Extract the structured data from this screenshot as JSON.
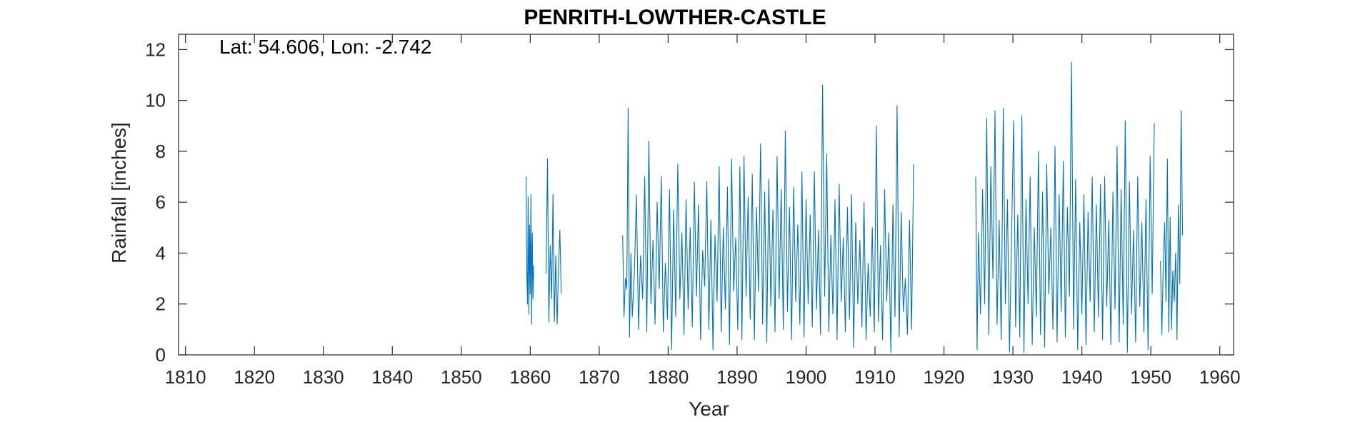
{
  "chart_data": {
    "type": "line",
    "title": "PENRITH-LOWTHER-CASTLE",
    "annotation": "Lat: 54.606, Lon: -2.742",
    "xlabel": "Year",
    "ylabel": "Rainfall [inches]",
    "xlim": [
      1809,
      1962
    ],
    "ylim": [
      0,
      12.6
    ],
    "xticks": [
      1810,
      1820,
      1830,
      1840,
      1850,
      1860,
      1870,
      1880,
      1890,
      1900,
      1910,
      1920,
      1930,
      1940,
      1950,
      1960
    ],
    "yticks": [
      0,
      2,
      4,
      6,
      8,
      10,
      12
    ],
    "grid": false,
    "series_color": "#0072BD",
    "series": [
      {
        "segments": [
          {
            "x": [
              1859.4,
              1859.5,
              1859.6,
              1859.7,
              1859.8,
              1859.9,
              1860.0,
              1860.1,
              1860.2,
              1860.3,
              1860.4,
              1860.5
            ],
            "y": [
              7.0,
              3.2,
              2.0,
              6.2,
              1.6,
              5.1,
              2.4,
              6.3,
              1.2,
              4.8,
              2.2,
              3.5
            ]
          },
          {
            "x": [
              1862.3,
              1862.5,
              1862.7,
              1862.9,
              1863.1,
              1863.3,
              1863.5,
              1863.7,
              1863.9,
              1864.1,
              1864.3,
              1864.5
            ],
            "y": [
              3.2,
              7.7,
              1.3,
              4.3,
              2.2,
              6.3,
              1.3,
              3.9,
              1.2,
              3.4,
              4.9,
              2.4
            ]
          },
          {
            "x": [
              1873.4,
              1873.6,
              1873.8,
              1874.0,
              1874.2,
              1874.4,
              1874.6,
              1874.8,
              1875.1,
              1875.4,
              1875.7,
              1876.0,
              1876.3,
              1876.6,
              1876.9,
              1877.2,
              1877.5,
              1877.8,
              1878.1,
              1878.4,
              1878.7,
              1879.0,
              1879.3,
              1879.6,
              1879.9,
              1880.2,
              1880.5,
              1880.8,
              1881.1,
              1881.4,
              1881.7,
              1882.0,
              1882.3,
              1882.6,
              1882.9,
              1883.2,
              1883.5,
              1883.8,
              1884.1,
              1884.4,
              1884.7,
              1885.0,
              1885.3,
              1885.6,
              1885.9,
              1886.2,
              1886.5,
              1886.8,
              1887.1,
              1887.4,
              1887.7,
              1888.0,
              1888.3,
              1888.6,
              1888.9,
              1889.2,
              1889.5,
              1889.8,
              1890.1,
              1890.4,
              1890.7,
              1891.0,
              1891.3,
              1891.6,
              1891.9,
              1892.2,
              1892.5,
              1892.8,
              1893.1,
              1893.4,
              1893.7,
              1894.0,
              1894.3,
              1894.6,
              1894.9,
              1895.2,
              1895.5,
              1895.8,
              1896.1,
              1896.4,
              1896.7,
              1897.0,
              1897.3,
              1897.6,
              1897.9,
              1898.2,
              1898.5,
              1898.8,
              1899.1,
              1899.4,
              1899.7,
              1900.0,
              1900.3,
              1900.6,
              1900.9,
              1901.2,
              1901.5,
              1901.8,
              1902.1,
              1902.4,
              1902.7,
              1903.0,
              1903.3,
              1903.6,
              1903.9,
              1904.2,
              1904.5,
              1904.8,
              1905.1,
              1905.4,
              1905.7,
              1906.0,
              1906.3,
              1906.6,
              1906.9,
              1907.2,
              1907.5,
              1907.8,
              1908.1,
              1908.4,
              1908.7,
              1909.0,
              1909.3,
              1909.6,
              1909.9,
              1910.2,
              1910.5,
              1910.8,
              1911.1,
              1911.4,
              1911.7,
              1912.0,
              1912.3,
              1912.6,
              1912.9,
              1913.2,
              1913.5,
              1913.8,
              1914.1,
              1914.4,
              1914.7,
              1915.0,
              1915.3,
              1915.6
            ],
            "y": [
              4.7,
              1.5,
              3.0,
              2.6,
              9.7,
              0.7,
              4.0,
              1.5,
              3.2,
              6.3,
              1.0,
              3.9,
              2.2,
              7.0,
              0.9,
              8.4,
              2.0,
              4.5,
              1.2,
              6.0,
              2.6,
              7.0,
              0.9,
              3.6,
              1.4,
              6.5,
              0.2,
              5.7,
              1.5,
              7.5,
              2.2,
              4.8,
              0.8,
              6.1,
              1.8,
              5.0,
              1.1,
              6.8,
              2.3,
              5.9,
              0.6,
              4.1,
              2.7,
              6.8,
              1.0,
              5.3,
              0.2,
              4.7,
              2.1,
              7.4,
              0.9,
              5.0,
              1.8,
              6.6,
              0.4,
              7.7,
              2.5,
              4.6,
              1.0,
              7.4,
              0.6,
              7.8,
              2.3,
              6.2,
              1.4,
              7.1,
              0.6,
              5.8,
              2.5,
              8.3,
              1.2,
              6.4,
              0.5,
              6.9,
              1.9,
              5.7,
              0.9,
              7.8,
              2.2,
              6.5,
              1.0,
              8.8,
              1.7,
              5.8,
              0.6,
              6.6,
              2.1,
              5.1,
              1.2,
              7.2,
              0.7,
              6.1,
              2.0,
              5.5,
              1.1,
              7.2,
              1.8,
              4.9,
              0.8,
              10.6,
              2.3,
              7.9,
              0.9,
              4.7,
              1.6,
              6.1,
              0.6,
              6.7,
              2.1,
              4.6,
              0.9,
              5.8,
              1.4,
              6.3,
              0.3,
              5.2,
              2.0,
              4.5,
              1.1,
              6.0,
              0.6,
              3.6,
              1.5,
              5.0,
              0.9,
              9.0,
              1.3,
              4.3,
              0.6,
              6.5,
              2.1,
              4.8,
              0.1,
              5.9,
              1.5,
              9.8,
              0.7,
              5.6,
              1.7,
              3.0,
              0.8,
              5.3,
              1.0,
              7.5
            ]
          },
          {
            "x": [
              1924.6,
              1924.8,
              1925.0,
              1925.3,
              1925.6,
              1925.9,
              1926.2,
              1926.5,
              1926.8,
              1927.1,
              1927.4,
              1927.7,
              1928.0,
              1928.3,
              1928.6,
              1928.9,
              1929.2,
              1929.5,
              1929.8,
              1930.1,
              1930.4,
              1930.7,
              1931.0,
              1931.3,
              1931.6,
              1931.9,
              1932.2,
              1932.5,
              1932.8,
              1933.1,
              1933.4,
              1933.7,
              1934.0,
              1934.3,
              1934.6,
              1934.9,
              1935.2,
              1935.5,
              1935.8,
              1936.1,
              1936.4,
              1936.7,
              1937.0,
              1937.3,
              1937.6,
              1937.9,
              1938.2,
              1938.5,
              1938.8,
              1939.1,
              1939.4,
              1939.7,
              1940.0,
              1940.3,
              1940.6,
              1940.9,
              1941.2,
              1941.5,
              1941.8,
              1942.1,
              1942.4,
              1942.7,
              1943.0,
              1943.3,
              1943.6,
              1943.9,
              1944.2,
              1944.5,
              1944.8,
              1945.1,
              1945.4,
              1945.7,
              1946.0,
              1946.3,
              1946.6,
              1946.9,
              1947.2,
              1947.5,
              1947.8,
              1948.1,
              1948.4,
              1948.7,
              1949.0,
              1949.3,
              1949.6,
              1949.9,
              1950.2,
              1950.5
            ],
            "y": [
              7.0,
              0.2,
              4.8,
              1.6,
              6.5,
              2.0,
              9.3,
              0.8,
              7.4,
              3.0,
              9.6,
              1.2,
              5.3,
              0.6,
              9.7,
              2.0,
              6.1,
              0.1,
              4.7,
              9.2,
              1.1,
              5.5,
              0.7,
              9.4,
              0.1,
              6.1,
              2.0,
              7.0,
              0.4,
              5.0,
              1.5,
              8.0,
              0.8,
              6.4,
              0.3,
              7.5,
              2.4,
              5.0,
              1.0,
              8.2,
              0.5,
              6.3,
              1.7,
              7.6,
              0.7,
              5.8,
              2.3,
              11.5,
              1.0,
              6.9,
              0.2,
              5.2,
              1.6,
              6.3,
              0.4,
              5.6,
              2.1,
              7.0,
              0.9,
              5.9,
              1.5,
              6.7,
              0.6,
              7.0,
              1.9,
              5.3,
              0.4,
              6.4,
              1.8,
              8.2,
              0.5,
              6.5,
              1.2,
              9.2,
              0.1,
              6.8,
              1.6,
              4.9,
              0.5,
              7.0,
              1.9,
              5.2,
              0.9,
              6.1,
              0.2,
              7.8,
              2.4,
              9.1
            ]
          },
          {
            "x": [
              1951.4,
              1951.6,
              1951.8,
              1952.0,
              1952.2,
              1952.4,
              1952.6,
              1952.8,
              1953.0,
              1953.2,
              1953.4,
              1953.6,
              1953.8,
              1954.0,
              1954.2,
              1954.4,
              1954.6
            ],
            "y": [
              3.7,
              0.8,
              3.4,
              5.2,
              2.1,
              7.7,
              0.9,
              5.4,
              1.0,
              3.3,
              2.1,
              4.0,
              0.6,
              5.9,
              2.8,
              9.6,
              4.7
            ]
          }
        ]
      }
    ]
  }
}
